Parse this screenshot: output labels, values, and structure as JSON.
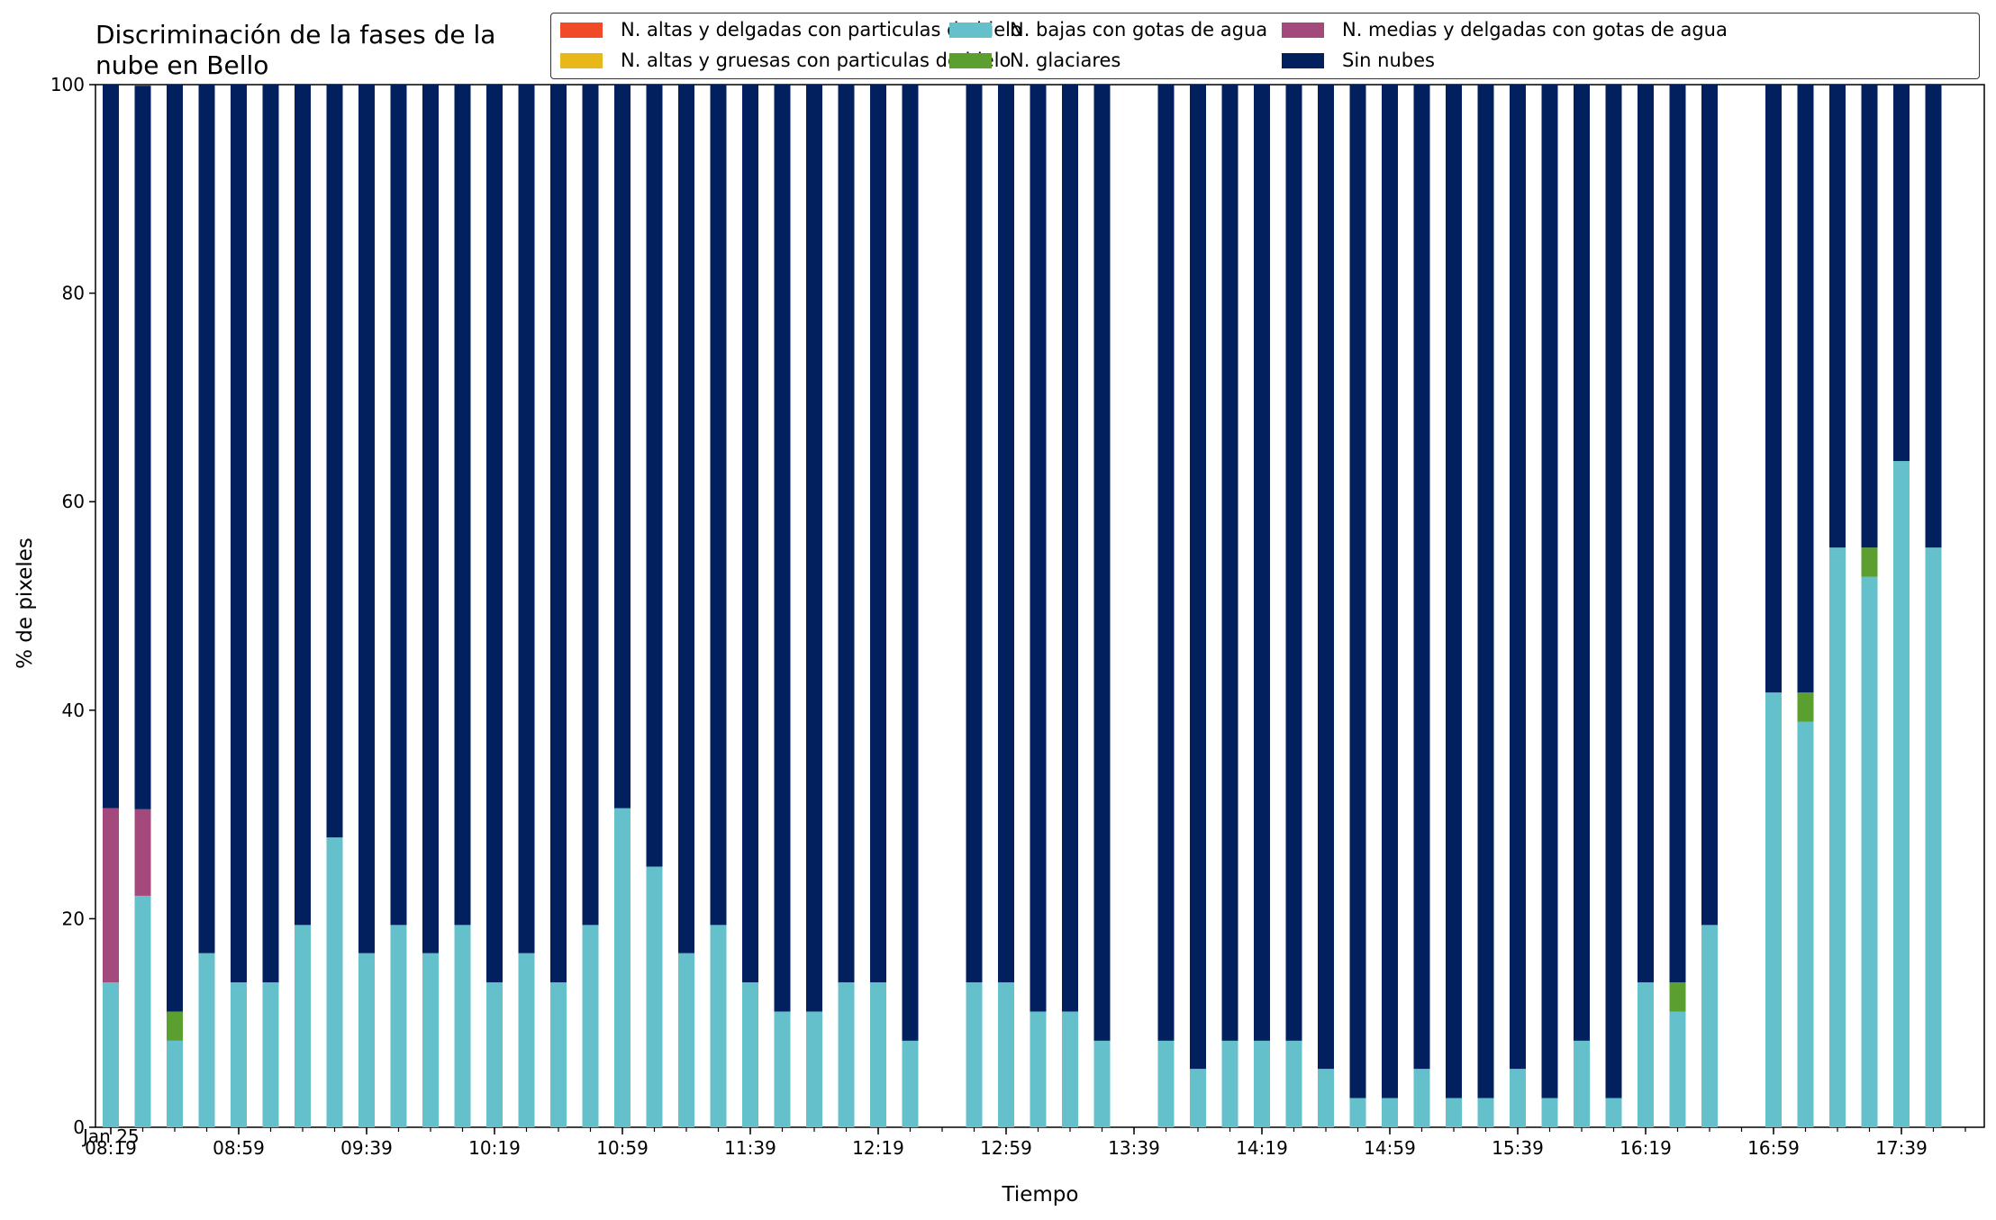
{
  "chart_data": {
    "type": "bar",
    "stacked": true,
    "title": "Discriminación de la fases de la\nnube en Bello",
    "xlabel": "Tiempo",
    "ylabel": "% de pixeles",
    "ylim": [
      0,
      100
    ],
    "yticks": [
      0,
      20,
      40,
      60,
      80,
      100
    ],
    "grid": false,
    "legend_position": "top-right",
    "x_interval_minutes": 10,
    "x_start": "08:19",
    "x_tick_labels": [
      "08:19",
      "08:59",
      "09:39",
      "10:19",
      "10:59",
      "11:39",
      "12:19",
      "12:59",
      "13:39",
      "14:19",
      "14:59",
      "15:39",
      "16:19",
      "16:59",
      "17:39"
    ],
    "x_date_label": "Jan 25",
    "categories": [
      "08:19",
      "08:29",
      "08:39",
      "08:49",
      "08:59",
      "09:09",
      "09:19",
      "09:29",
      "09:39",
      "09:49",
      "09:59",
      "10:09",
      "10:19",
      "10:29",
      "10:39",
      "10:49",
      "10:59",
      "11:09",
      "11:19",
      "11:29",
      "11:39",
      "11:49",
      "11:59",
      "12:09",
      "12:19",
      "12:29",
      "12:39",
      "12:49",
      "12:59",
      "13:09",
      "13:19",
      "13:29",
      "13:39",
      "13:49",
      "13:59",
      "14:09",
      "14:19",
      "14:29",
      "14:39",
      "14:49",
      "14:59",
      "15:09",
      "15:19",
      "15:29",
      "15:39",
      "15:49",
      "15:59",
      "16:09",
      "16:19",
      "16:29",
      "16:39",
      "16:49",
      "16:59",
      "17:09",
      "17:19",
      "17:29",
      "17:39",
      "17:49",
      "17:59"
    ],
    "series": [
      {
        "name": "N. altas y delgadas con particulas de hielo",
        "color": "#f04a29",
        "values": [
          0,
          0,
          0,
          0,
          0,
          0,
          0,
          0,
          0,
          0,
          0,
          0,
          0,
          0,
          0,
          0,
          0,
          0,
          0,
          0,
          0,
          0,
          0,
          0,
          0,
          0,
          0,
          0,
          0,
          0,
          0,
          0,
          0,
          0,
          0,
          0,
          0,
          0,
          0,
          0,
          0,
          0,
          0,
          0,
          0,
          0,
          0,
          0,
          0,
          0,
          0,
          0,
          0,
          0,
          0,
          0,
          0,
          0,
          0
        ]
      },
      {
        "name": "N. altas y gruesas con particulas de hielo",
        "color": "#e8b71a",
        "values": [
          0,
          0,
          0,
          0,
          0,
          0,
          0,
          0,
          0,
          0,
          0,
          0,
          0,
          0,
          0,
          0,
          0,
          0,
          0,
          0,
          0,
          0,
          0,
          0,
          0,
          0,
          0,
          0,
          0,
          0,
          0,
          0,
          0,
          0,
          0,
          0,
          0,
          0,
          0,
          0,
          0,
          0,
          0,
          0,
          0,
          0,
          0,
          0,
          0,
          0,
          0,
          0,
          0,
          0,
          0,
          0,
          0,
          0,
          0
        ]
      },
      {
        "name": "N. bajas con gotas de agua",
        "color": "#64c0cb",
        "values": [
          13.9,
          22.2,
          8.3,
          16.7,
          13.9,
          13.9,
          19.4,
          27.8,
          16.7,
          19.4,
          16.7,
          19.4,
          13.9,
          16.7,
          13.9,
          19.4,
          30.6,
          25.0,
          16.7,
          19.4,
          13.9,
          11.1,
          11.1,
          13.9,
          13.9,
          8.3,
          null,
          13.9,
          13.9,
          11.1,
          11.1,
          8.3,
          null,
          8.3,
          5.6,
          8.3,
          8.3,
          8.3,
          5.6,
          2.8,
          2.8,
          5.6,
          2.8,
          2.8,
          5.6,
          2.8,
          8.3,
          2.8,
          13.9,
          11.1,
          19.4,
          null,
          41.7,
          38.9,
          55.6,
          52.8,
          63.9,
          55.6,
          null
        ]
      },
      {
        "name": "N. glaciares",
        "color": "#5a9f2f",
        "values": [
          0,
          0,
          2.8,
          0,
          0,
          0,
          0,
          0,
          0,
          0,
          0,
          0,
          0,
          0,
          0,
          0,
          0,
          0,
          0,
          0,
          0,
          0,
          0,
          0,
          0,
          0,
          null,
          0,
          0,
          0,
          0,
          0,
          null,
          0,
          0,
          0,
          0,
          0,
          0,
          0,
          0,
          0,
          0,
          0,
          0,
          0,
          0,
          0,
          0,
          2.8,
          0,
          null,
          0,
          2.8,
          0,
          2.8,
          0,
          0,
          null
        ]
      },
      {
        "name": "N. medias y delgadas con gotas de agua",
        "color": "#a4497b",
        "values": [
          16.7,
          8.3,
          0,
          0,
          0,
          0,
          0,
          0,
          0,
          0,
          0,
          0,
          0,
          0,
          0,
          0,
          0,
          0,
          0,
          0,
          0,
          0,
          0,
          0,
          0,
          0,
          null,
          0,
          0,
          0,
          0,
          0,
          null,
          0,
          0,
          0,
          0,
          0,
          0,
          0,
          0,
          0,
          0,
          0,
          0,
          0,
          0,
          0,
          0,
          0,
          0,
          null,
          0,
          0,
          0,
          0,
          0,
          0,
          null
        ]
      },
      {
        "name": "Sin nubes",
        "color": "#03205e",
        "values": [
          69.4,
          69.4,
          88.9,
          83.3,
          86.1,
          86.1,
          80.6,
          72.2,
          83.3,
          80.6,
          83.3,
          80.6,
          86.1,
          83.3,
          86.1,
          80.6,
          69.4,
          75.0,
          83.3,
          80.6,
          86.1,
          88.9,
          88.9,
          86.1,
          86.1,
          91.7,
          null,
          86.1,
          86.1,
          88.9,
          88.9,
          91.7,
          null,
          91.7,
          94.4,
          91.7,
          91.7,
          91.7,
          94.4,
          97.2,
          97.2,
          94.4,
          97.2,
          97.2,
          94.4,
          97.2,
          91.7,
          97.2,
          86.1,
          86.1,
          80.6,
          null,
          58.3,
          58.3,
          44.4,
          44.4,
          36.1,
          44.4,
          null
        ]
      }
    ]
  }
}
